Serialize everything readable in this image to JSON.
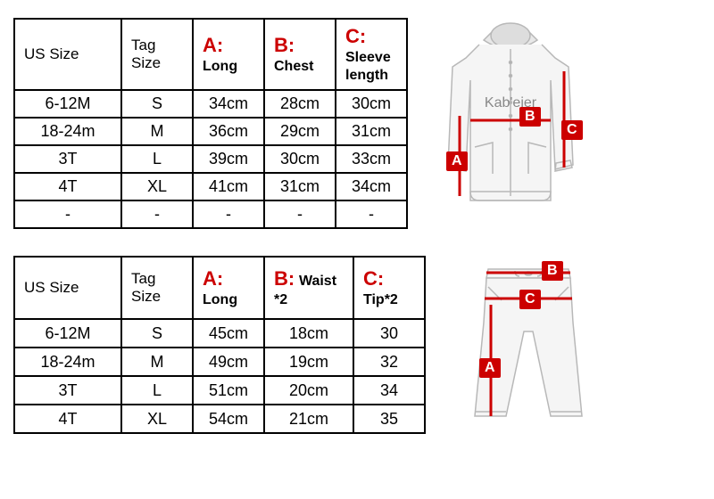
{
  "top_table": {
    "columns": [
      {
        "letter": "",
        "label": "US Size",
        "width": 120
      },
      {
        "letter": "",
        "label": "Tag Size",
        "width": 80
      },
      {
        "letter": "A:",
        "label": "Long",
        "width": 80
      },
      {
        "letter": "B:",
        "label": "Chest",
        "width": 80
      },
      {
        "letter": "C:",
        "label": "Sleeve length",
        "width": 80
      }
    ],
    "rows": [
      [
        "6-12M",
        "S",
        "34cm",
        "28cm",
        "30cm"
      ],
      [
        "18-24m",
        "M",
        "36cm",
        "29cm",
        "31cm"
      ],
      [
        "3T",
        "L",
        "39cm",
        "30cm",
        "33cm"
      ],
      [
        "4T",
        "XL",
        "41cm",
        "31cm",
        "34cm"
      ],
      [
        "-",
        "-",
        "-",
        "-",
        "-"
      ]
    ]
  },
  "bottom_table": {
    "columns": [
      {
        "letter": "",
        "label": "US Size",
        "width": 120
      },
      {
        "letter": "",
        "label": "Tag Size",
        "width": 80
      },
      {
        "letter": "A:",
        "label": "Long",
        "width": 80
      },
      {
        "letter": "B:",
        "label": "Waist *2",
        "width": 100
      },
      {
        "letter": "C:",
        "label": "Tip*2",
        "width": 80
      }
    ],
    "rows": [
      [
        "6-12M",
        "S",
        "45cm",
        "18cm",
        "30"
      ],
      [
        "18-24m",
        "M",
        "49cm",
        "19cm",
        "32"
      ],
      [
        "3T",
        "L",
        "51cm",
        "20cm",
        "34"
      ],
      [
        "4T",
        "XL",
        "54cm",
        "21cm",
        "35"
      ]
    ]
  },
  "jacket": {
    "brand": "Kab'eier",
    "labels": {
      "A": "A",
      "B": "B",
      "C": "C"
    }
  },
  "pants": {
    "labels": {
      "A": "A",
      "B": "B",
      "C": "C"
    }
  },
  "colors": {
    "accent": "#cc0000",
    "border": "#000000",
    "sketch": "#b8b8b8",
    "sketch_dark": "#888888"
  }
}
